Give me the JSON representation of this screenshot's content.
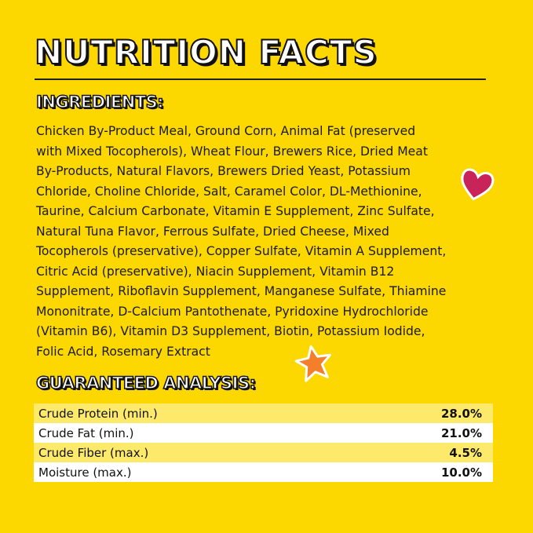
{
  "title": "NUTRITION FACTS",
  "ingredients": {
    "heading": "INGREDIENTS:",
    "lines": [
      "Chicken By-Product Meal, Ground Corn, Animal Fat (preserved",
      "with Mixed Tocopherols), Wheat Flour, Brewers Rice, Dried Meat",
      "By-Products, Natural Flavors, Brewers Dried Yeast, Potassium",
      "Chloride, Choline Chloride, Salt, Caramel Color, DL-Methionine,",
      "Taurine, Calcium Carbonate, Vitamin E Supplement, Zinc Sulfate,",
      "Natural Tuna Flavor, Ferrous Sulfate, Dried Cheese, Mixed",
      "Tocopherols (preservative), Copper Sulfate, Vitamin A Supplement,",
      "Citric Acid (preservative), Niacin Supplement, Vitamin B12",
      "Supplement, Riboflavin Supplement, Manganese Sulfate, Thiamine",
      "Mononitrate, D-Calcium Pantothenate, Pyridoxine Hydrochloride",
      "(Vitamin B6), Vitamin D3 Supplement, Biotin, Potassium Iodide,",
      "Folic Acid, Rosemary Extract"
    ]
  },
  "analysis": {
    "heading": "GUARANTEED ANALYSIS:",
    "rows": [
      {
        "label": "Crude Protein (min.)",
        "value": "28.0%"
      },
      {
        "label": "Crude Fat (min.)",
        "value": "21.0%"
      },
      {
        "label": "Crude Fiber (max.)",
        "value": "4.5%"
      },
      {
        "label": "Moisture (max.)",
        "value": "10.0%"
      }
    ]
  },
  "colors": {
    "background": "#fdd800",
    "heart": "#c8245a",
    "star": "#f47f2a"
  }
}
